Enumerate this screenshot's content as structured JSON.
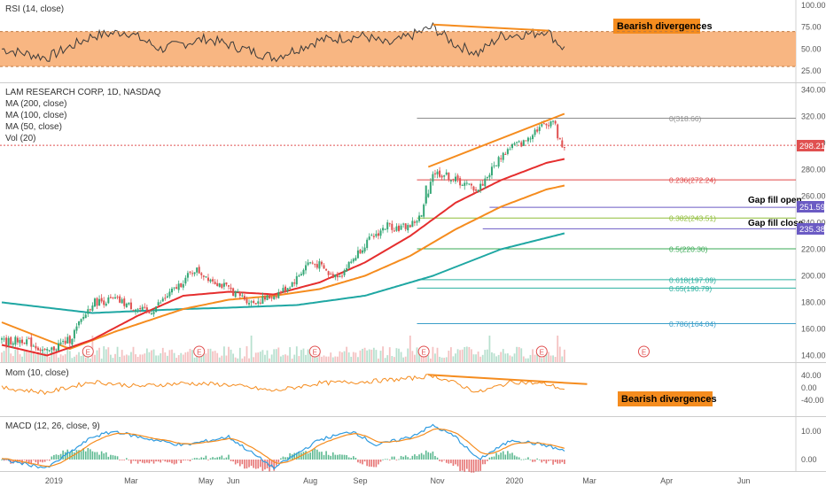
{
  "colors": {
    "rsi_line": "#3a3a3a",
    "rsi_band": "#f8b682",
    "orange": "#f58c1e",
    "red_ma": "#e52e2e",
    "teal_ma": "#1fa7a3",
    "candle_up": "#35a776",
    "candle_down": "#e05050",
    "price_tag": "#e05050",
    "gap_line": "#6b5bc4",
    "fib_0": "#8c8c8c",
    "fib_236": "#e04848",
    "fib_382": "#8fbd38",
    "fib_5": "#3aaa55",
    "fib_618": "#2ab0a0",
    "fib_786": "#3a9ec9",
    "momentum": "#f58c1e",
    "macd": "#2e9be0",
    "signal": "#f58c1e",
    "annotation_bg": "#f58c1e"
  },
  "x_axis": {
    "labels": [
      "2019",
      "Mar",
      "May",
      "Jun",
      "Aug",
      "Sep",
      "Nov",
      "2020",
      "Mar",
      "Apr",
      "Jun"
    ]
  },
  "rsi_panel": {
    "legend": "RSI (14, close)",
    "annotation": "Bearish divergences",
    "ticks": [
      "100.00",
      "75.00",
      "50.00",
      "25.00"
    ],
    "band_range": [
      30,
      70
    ]
  },
  "price_panel": {
    "legend": [
      "LAM RESEARCH CORP, 1D, NASDAQ",
      "MA (200, close)",
      "MA (100, close)",
      "MA (50, close)",
      "Vol (20)"
    ],
    "ticks": [
      "340.00",
      "320.00",
      "300.00",
      "280.00",
      "260.00",
      "240.00",
      "220.00",
      "200.00",
      "180.00",
      "160.00",
      "140.00"
    ],
    "last_price": "298.21",
    "gap_fill_open": {
      "label": "Gap fill open",
      "value": "251.59"
    },
    "gap_fill_close": {
      "label": "Gap fill close",
      "value": "235.38"
    },
    "fib_levels": [
      {
        "label": "0(318.66)",
        "value": 318.66,
        "color_key": "fib_0"
      },
      {
        "label": "0.236(272.24)",
        "value": 272.24,
        "color_key": "fib_236"
      },
      {
        "label": "0.382(243.51)",
        "value": 243.51,
        "color_key": "fib_382"
      },
      {
        "label": "0.5(220.30)",
        "value": 220.3,
        "color_key": "fib_5"
      },
      {
        "label": "0.618(197.09)",
        "value": 197.09,
        "color_key": "fib_618"
      },
      {
        "label": "0.65(190.79)",
        "value": 190.79,
        "color_key": "fib_618"
      },
      {
        "label": "0.786(164.04)",
        "value": 164.04,
        "color_key": "fib_786"
      }
    ],
    "earnings_marker": "E"
  },
  "momentum_panel": {
    "legend": "Mom (10, close)",
    "annotation": "Bearish divergences",
    "ticks": [
      "40.00",
      "0.00",
      "-40.00"
    ]
  },
  "macd_panel": {
    "legend": "MACD (12, 26, close, 9)",
    "ticks": [
      "10.00",
      "0.00"
    ]
  },
  "chart_data": {
    "type": "candlestick",
    "symbol": "LAM RESEARCH CORP",
    "interval": "1D",
    "exchange": "NASDAQ",
    "y_range": [
      135,
      345
    ],
    "price_path": [
      [
        0,
        150
      ],
      [
        10,
        152
      ],
      [
        20,
        142
      ],
      [
        25,
        148
      ],
      [
        30,
        152
      ],
      [
        40,
        180
      ],
      [
        50,
        182
      ],
      [
        60,
        175
      ],
      [
        65,
        172
      ],
      [
        70,
        180
      ],
      [
        80,
        196
      ],
      [
        85,
        205
      ],
      [
        90,
        200
      ],
      [
        95,
        195
      ],
      [
        100,
        190
      ],
      [
        110,
        180
      ],
      [
        115,
        182
      ],
      [
        120,
        185
      ],
      [
        125,
        190
      ],
      [
        130,
        198
      ],
      [
        135,
        210
      ],
      [
        140,
        208
      ],
      [
        145,
        200
      ],
      [
        150,
        202
      ],
      [
        160,
        224
      ],
      [
        170,
        238
      ],
      [
        175,
        236
      ],
      [
        180,
        238
      ],
      [
        185,
        245
      ],
      [
        190,
        278
      ],
      [
        195,
        276
      ],
      [
        200,
        272
      ],
      [
        205,
        268
      ],
      [
        210,
        265
      ],
      [
        220,
        290
      ],
      [
        225,
        298
      ],
      [
        230,
        300
      ],
      [
        235,
        310
      ],
      [
        240,
        314
      ],
      [
        243,
        318
      ],
      [
        246,
        300
      ],
      [
        248,
        298
      ]
    ],
    "ma50_path": [
      [
        0,
        148
      ],
      [
        20,
        140
      ],
      [
        40,
        152
      ],
      [
        60,
        170
      ],
      [
        80,
        185
      ],
      [
        100,
        188
      ],
      [
        120,
        186
      ],
      [
        140,
        195
      ],
      [
        160,
        210
      ],
      [
        180,
        230
      ],
      [
        200,
        255
      ],
      [
        220,
        272
      ],
      [
        240,
        285
      ],
      [
        248,
        288
      ]
    ],
    "ma100_path": [
      [
        0,
        165
      ],
      [
        30,
        145
      ],
      [
        50,
        158
      ],
      [
        80,
        175
      ],
      [
        100,
        182
      ],
      [
        120,
        185
      ],
      [
        140,
        190
      ],
      [
        160,
        200
      ],
      [
        180,
        215
      ],
      [
        200,
        235
      ],
      [
        220,
        252
      ],
      [
        240,
        265
      ],
      [
        248,
        268
      ]
    ],
    "ma200_path": [
      [
        0,
        180
      ],
      [
        40,
        172
      ],
      [
        80,
        175
      ],
      [
        100,
        176
      ],
      [
        130,
        178
      ],
      [
        160,
        185
      ],
      [
        190,
        200
      ],
      [
        220,
        220
      ],
      [
        248,
        232
      ]
    ],
    "rsi_path": [
      [
        0,
        50
      ],
      [
        20,
        40
      ],
      [
        40,
        65
      ],
      [
        55,
        70
      ],
      [
        70,
        50
      ],
      [
        90,
        62
      ],
      [
        100,
        55
      ],
      [
        120,
        40
      ],
      [
        140,
        60
      ],
      [
        160,
        65
      ],
      [
        170,
        55
      ],
      [
        190,
        75
      ],
      [
        200,
        55
      ],
      [
        210,
        45
      ],
      [
        220,
        65
      ],
      [
        235,
        68
      ],
      [
        240,
        72
      ],
      [
        244,
        60
      ],
      [
        248,
        50
      ]
    ],
    "momentum_path": [
      [
        0,
        0
      ],
      [
        20,
        -15
      ],
      [
        40,
        20
      ],
      [
        60,
        5
      ],
      [
        80,
        15
      ],
      [
        100,
        10
      ],
      [
        120,
        -10
      ],
      [
        140,
        15
      ],
      [
        160,
        20
      ],
      [
        180,
        30
      ],
      [
        190,
        40
      ],
      [
        200,
        15
      ],
      [
        210,
        -15
      ],
      [
        225,
        20
      ],
      [
        240,
        12
      ],
      [
        248,
        -5
      ]
    ],
    "macd_path": [
      [
        0,
        0
      ],
      [
        20,
        -3
      ],
      [
        40,
        8
      ],
      [
        50,
        10
      ],
      [
        60,
        8
      ],
      [
        80,
        5
      ],
      [
        100,
        8
      ],
      [
        120,
        -3
      ],
      [
        140,
        7
      ],
      [
        155,
        10
      ],
      [
        165,
        5
      ],
      [
        180,
        8
      ],
      [
        190,
        12
      ],
      [
        200,
        8
      ],
      [
        210,
        0
      ],
      [
        225,
        7
      ],
      [
        240,
        5
      ],
      [
        248,
        3
      ]
    ],
    "total_bars": 350
  }
}
